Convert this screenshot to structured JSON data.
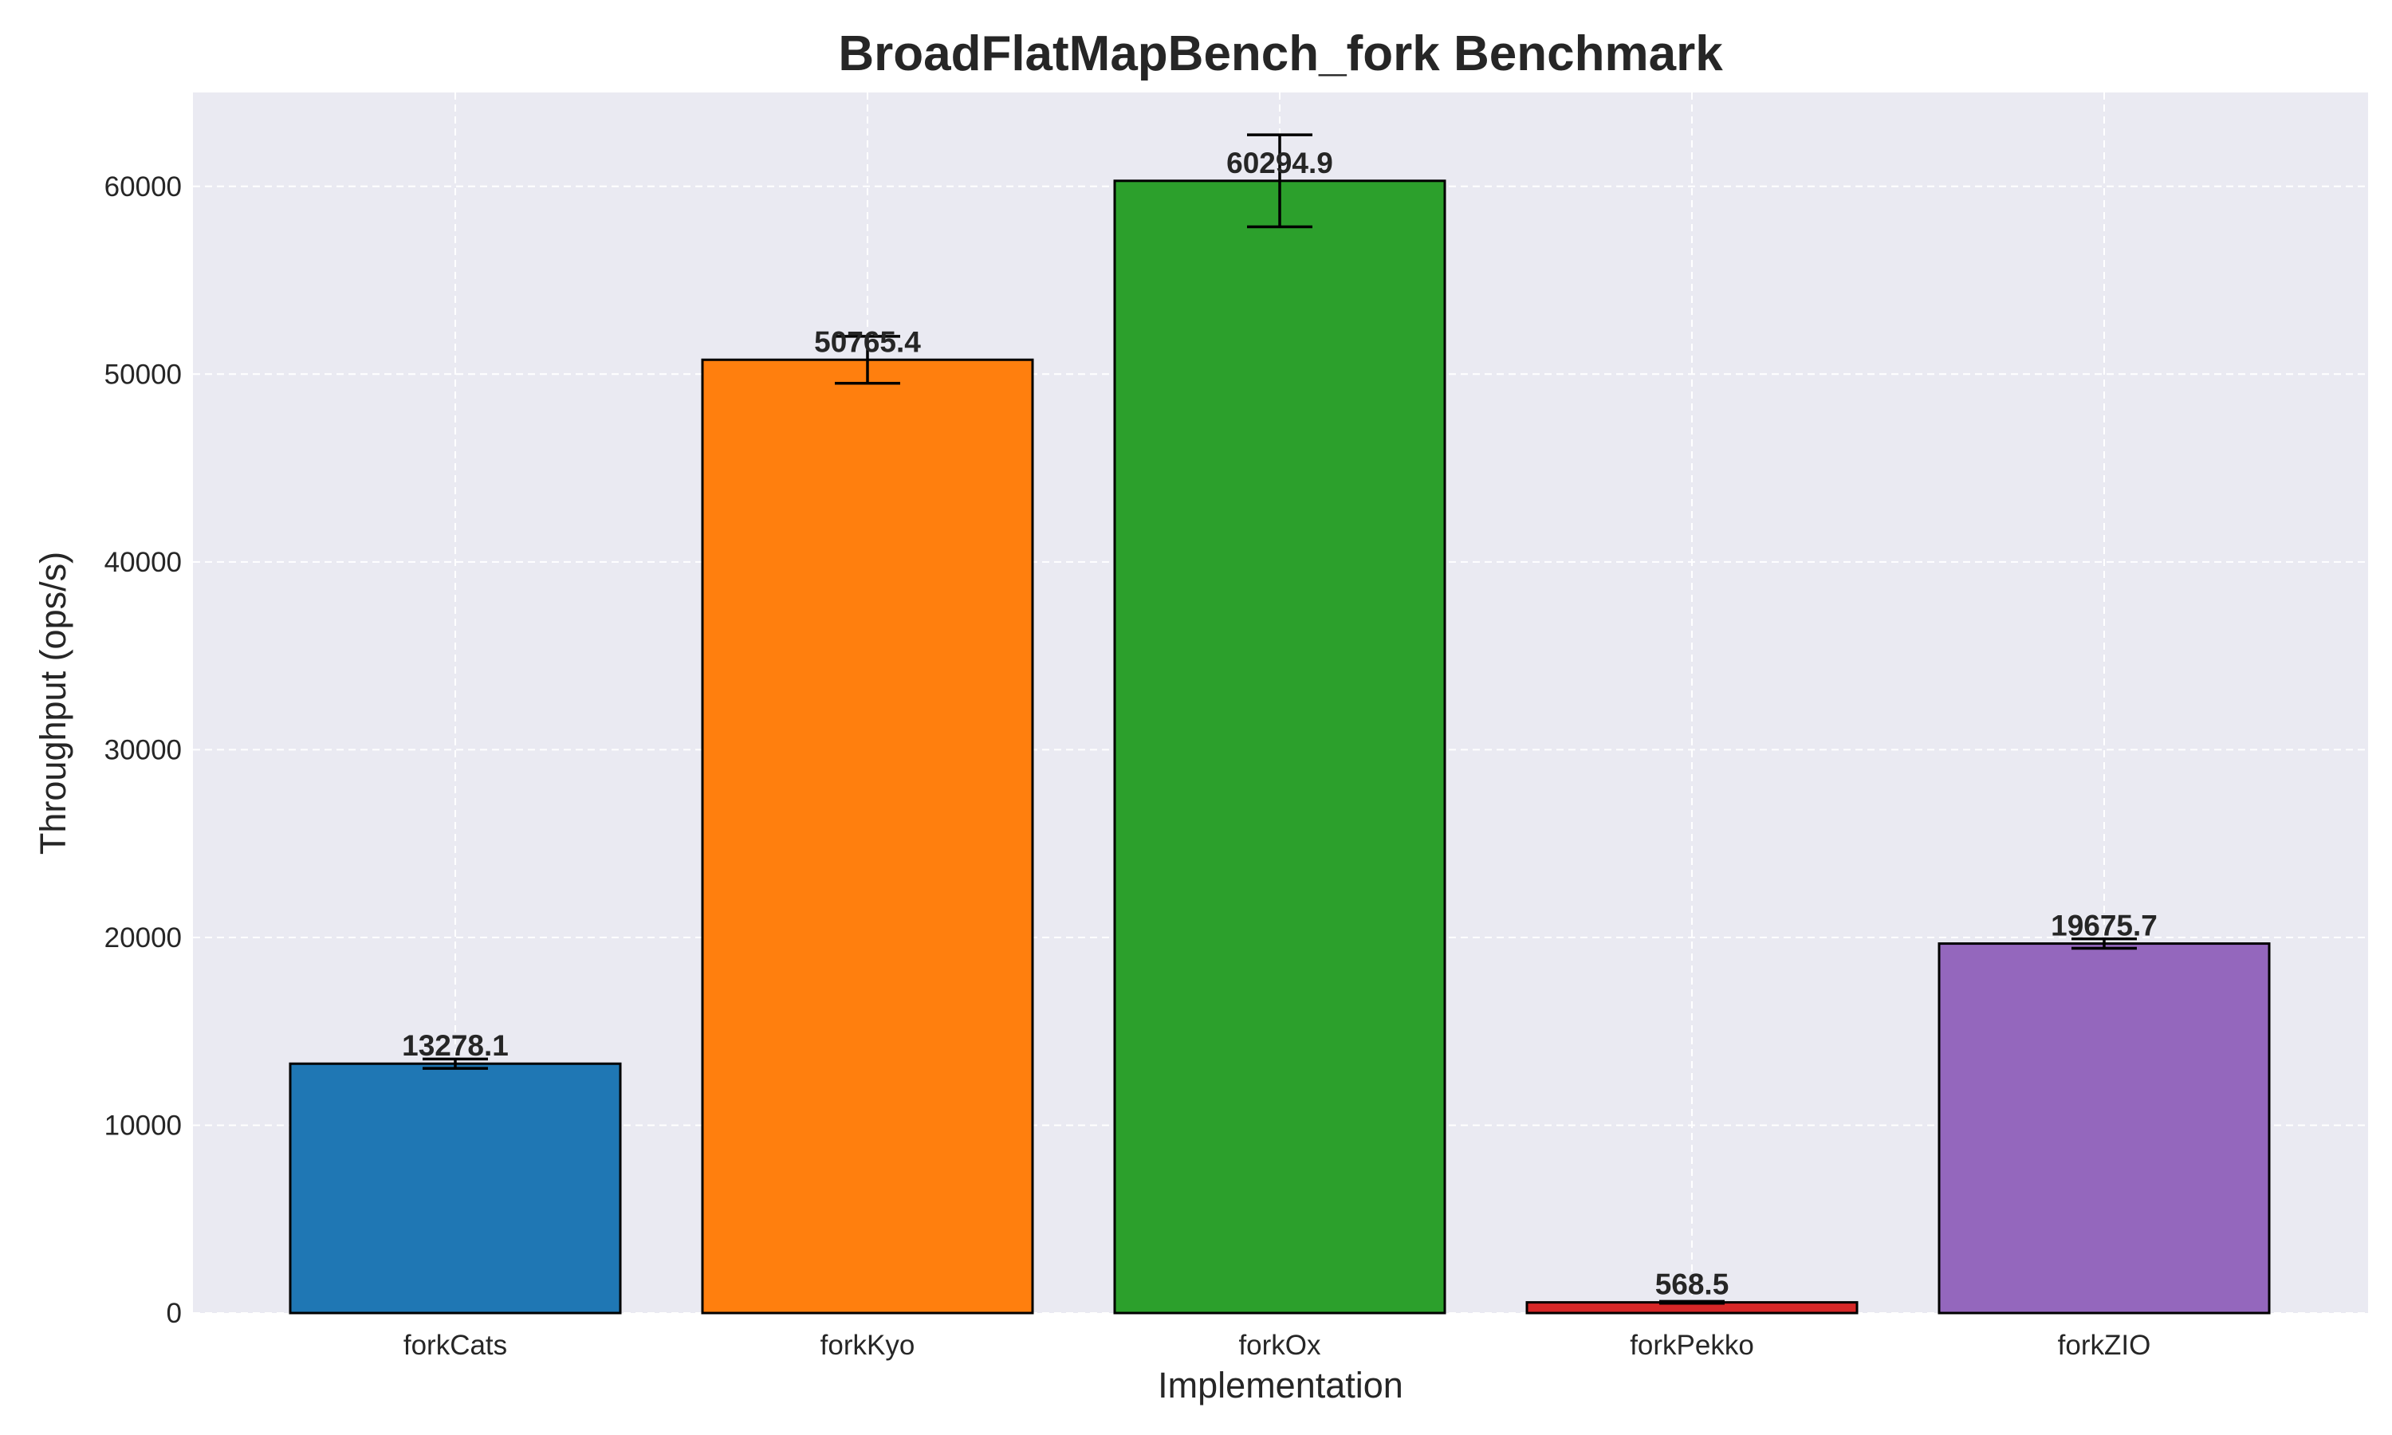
{
  "chart_data": {
    "type": "bar",
    "title": "BroadFlatMapBench_fork Benchmark",
    "xlabel": "Implementation",
    "ylabel": "Throughput (ops/s)",
    "ylim": [
      0,
      65000
    ],
    "yticks": [
      0,
      10000,
      20000,
      30000,
      40000,
      50000,
      60000
    ],
    "grid": true,
    "categories": [
      "forkCats",
      "forkKyo",
      "forkOx",
      "forkPekko",
      "forkZIO"
    ],
    "values": [
      13278.1,
      50765.4,
      60294.9,
      568.5,
      19675.7
    ],
    "value_labels": [
      "13278.1",
      "50765.4",
      "60294.9",
      "568.5",
      "19675.7"
    ],
    "errors": [
      250,
      1250,
      2450,
      50,
      250
    ],
    "colors": [
      "#1f77b4",
      "#ff7f0e",
      "#2ca02c",
      "#d62728",
      "#9467bd"
    ],
    "background": "#eaeaf2"
  }
}
